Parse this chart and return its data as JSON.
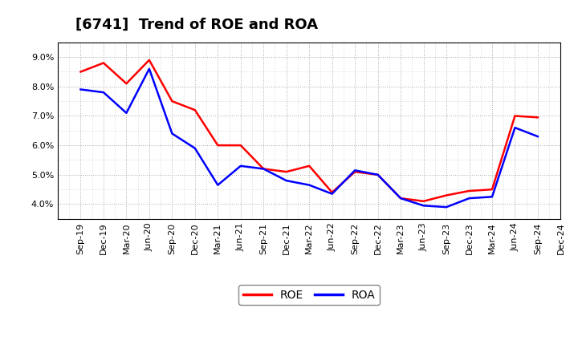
{
  "title": "[6741]  Trend of ROE and ROA",
  "labels": [
    "Sep-19",
    "Dec-19",
    "Mar-20",
    "Jun-20",
    "Sep-20",
    "Dec-20",
    "Mar-21",
    "Jun-21",
    "Sep-21",
    "Dec-21",
    "Mar-22",
    "Jun-22",
    "Sep-22",
    "Dec-22",
    "Mar-23",
    "Jun-23",
    "Sep-23",
    "Dec-23",
    "Mar-24",
    "Jun-24",
    "Sep-24",
    "Dec-24"
  ],
  "ROE": [
    8.5,
    8.8,
    8.1,
    8.9,
    7.5,
    7.2,
    6.0,
    6.0,
    5.2,
    5.1,
    5.3,
    4.4,
    5.1,
    5.0,
    4.2,
    4.1,
    4.3,
    4.45,
    4.5,
    7.0,
    6.95,
    null
  ],
  "ROA": [
    7.9,
    7.8,
    7.1,
    8.6,
    6.4,
    5.9,
    4.65,
    5.3,
    5.2,
    4.8,
    4.65,
    4.35,
    5.15,
    5.0,
    4.2,
    3.95,
    3.9,
    4.2,
    4.25,
    6.6,
    6.3,
    null
  ],
  "roe_color": "#FF0000",
  "roa_color": "#0000FF",
  "background_color": "#FFFFFF",
  "grid_color": "#AAAAAA",
  "ylim": [
    3.5,
    9.5
  ],
  "yticks": [
    4.0,
    5.0,
    6.0,
    7.0,
    8.0,
    9.0
  ],
  "ytick_labels": [
    "4.0%",
    "5.0%",
    "6.0%",
    "7.0%",
    "8.0%",
    "9.0%"
  ],
  "title_fontsize": 13,
  "tick_fontsize": 8,
  "legend_fontsize": 10
}
